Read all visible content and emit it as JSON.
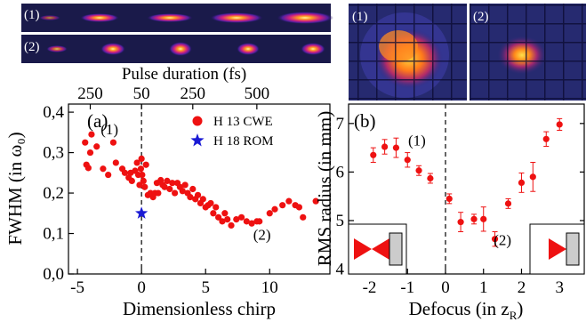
{
  "strips": {
    "labels": [
      "(1)",
      "(2)"
    ]
  },
  "images": {
    "labels": [
      "(1)",
      "(2)"
    ]
  },
  "chart_data": [
    {
      "type": "scatter",
      "panel_label": "(a)",
      "xlabel": "Dimensionless chirp",
      "ylabel": "FWHM  (in ω₀)",
      "top_axis_label": "Pulse duration (fs)",
      "xlim": [
        -5.7,
        14.7
      ],
      "ylim": [
        0,
        0.42
      ],
      "x_ticks": [
        -5,
        0,
        5,
        10
      ],
      "y_ticks": [
        0.0,
        0.1,
        0.2,
        0.3,
        0.4
      ],
      "y_tick_labels": [
        "0,0",
        "0,1",
        "0,2",
        "0,3",
        "0,4"
      ],
      "top_ticks": [
        {
          "x": -4.0,
          "label": "250"
        },
        {
          "x": 0.0,
          "label": "50"
        },
        {
          "x": 4.0,
          "label": "250"
        },
        {
          "x": 9.0,
          "label": "500"
        }
      ],
      "legend": [
        {
          "name": "H 13 CWE",
          "marker": "circle",
          "color": "#ee1111"
        },
        {
          "name": "H 18 ROM",
          "marker": "star",
          "color": "#1a1ad4"
        }
      ],
      "annotations": [
        {
          "text": "(1)",
          "x": -2.5,
          "y": 0.345
        },
        {
          "text": "(2)",
          "x": 9.4,
          "y": 0.085
        }
      ],
      "vline_x": 0,
      "series": [
        {
          "name": "H 13 CWE",
          "color": "#ee1111",
          "points": [
            [
              -4.4,
              0.325
            ],
            [
              -4.3,
              0.27
            ],
            [
              -4.15,
              0.262
            ],
            [
              -4.0,
              0.3
            ],
            [
              -3.9,
              0.345
            ],
            [
              -3.5,
              0.315
            ],
            [
              -3.0,
              0.26
            ],
            [
              -2.6,
              0.245
            ],
            [
              -2.2,
              0.325
            ],
            [
              -2.0,
              0.275
            ],
            [
              -1.5,
              0.26
            ],
            [
              -1.3,
              0.25
            ],
            [
              -1.0,
              0.238
            ],
            [
              -0.85,
              0.25
            ],
            [
              -0.75,
              0.23
            ],
            [
              -0.5,
              0.255
            ],
            [
              -0.35,
              0.275
            ],
            [
              -0.25,
              0.245
            ],
            [
              -0.15,
              0.22
            ],
            [
              -0.05,
              0.26
            ],
            [
              0.0,
              0.285
            ],
            [
              0.05,
              0.245
            ],
            [
              0.15,
              0.23
            ],
            [
              0.25,
              0.215
            ],
            [
              0.35,
              0.27
            ],
            [
              0.5,
              0.195
            ],
            [
              0.7,
              0.2
            ],
            [
              0.9,
              0.19
            ],
            [
              1.05,
              0.2
            ],
            [
              1.2,
              0.225
            ],
            [
              1.3,
              0.2
            ],
            [
              1.5,
              0.232
            ],
            [
              1.65,
              0.22
            ],
            [
              1.8,
              0.215
            ],
            [
              2.0,
              0.23
            ],
            [
              2.2,
              0.21
            ],
            [
              2.4,
              0.225
            ],
            [
              2.6,
              0.2
            ],
            [
              2.8,
              0.225
            ],
            [
              3.0,
              0.215
            ],
            [
              3.2,
              0.205
            ],
            [
              3.4,
              0.22
            ],
            [
              3.6,
              0.2
            ],
            [
              3.8,
              0.19
            ],
            [
              4.0,
              0.21
            ],
            [
              4.2,
              0.185
            ],
            [
              4.4,
              0.195
            ],
            [
              4.6,
              0.175
            ],
            [
              4.8,
              0.185
            ],
            [
              5.0,
              0.165
            ],
            [
              5.2,
              0.17
            ],
            [
              5.4,
              0.175
            ],
            [
              5.6,
              0.15
            ],
            [
              5.8,
              0.165
            ],
            [
              6.0,
              0.14
            ],
            [
              6.3,
              0.13
            ],
            [
              6.5,
              0.15
            ],
            [
              6.7,
              0.135
            ],
            [
              7.0,
              0.12
            ],
            [
              7.4,
              0.135
            ],
            [
              7.8,
              0.14
            ],
            [
              8.2,
              0.13
            ],
            [
              8.6,
              0.125
            ],
            [
              9.0,
              0.13
            ],
            [
              9.2,
              0.13
            ],
            [
              10.0,
              0.15
            ],
            [
              10.4,
              0.16
            ],
            [
              11.0,
              0.17
            ],
            [
              11.5,
              0.18
            ],
            [
              12.0,
              0.17
            ],
            [
              12.3,
              0.165
            ],
            [
              12.6,
              0.14
            ],
            [
              13.6,
              0.18
            ]
          ]
        },
        {
          "name": "H 18 ROM",
          "color": "#1a1ad4",
          "points": [
            [
              0.0,
              0.15
            ]
          ]
        }
      ]
    },
    {
      "type": "scatter",
      "panel_label": "(b)",
      "xlabel": "Defocus (in z",
      "xlabel_sub": "R",
      "xlabel_end": ")",
      "ylabel": "RMS radius (in mm)",
      "xlim": [
        -2.55,
        3.65
      ],
      "ylim": [
        3.9,
        7.4
      ],
      "x_ticks": [
        -2,
        -1,
        0,
        1,
        2,
        3
      ],
      "y_ticks": [
        4,
        5,
        6,
        7
      ],
      "annotations": [
        {
          "text": "(1)",
          "x": -0.75,
          "y": 6.55
        },
        {
          "text": "(2)",
          "x": 1.5,
          "y": 4.5
        }
      ],
      "vline_x": 0,
      "series": [
        {
          "name": "",
          "color": "#ee1111",
          "points": [
            {
              "x": -1.9,
              "y": 6.35,
              "err": 0.15
            },
            {
              "x": -1.6,
              "y": 6.52,
              "err": 0.15
            },
            {
              "x": -1.3,
              "y": 6.5,
              "err": 0.2
            },
            {
              "x": -1.0,
              "y": 6.25,
              "err": 0.15
            },
            {
              "x": -0.7,
              "y": 6.03,
              "err": 0.1
            },
            {
              "x": -0.4,
              "y": 5.87,
              "err": 0.1
            },
            {
              "x": 0.1,
              "y": 5.45,
              "err": 0.1
            },
            {
              "x": 0.4,
              "y": 4.97,
              "err": 0.2
            },
            {
              "x": 0.75,
              "y": 5.03,
              "err": 0.1
            },
            {
              "x": 1.0,
              "y": 5.03,
              "err": 0.25
            },
            {
              "x": 1.3,
              "y": 4.62,
              "err": 0.15
            },
            {
              "x": 1.65,
              "y": 5.35,
              "err": 0.1
            },
            {
              "x": 2.0,
              "y": 5.78,
              "err": 0.2
            },
            {
              "x": 2.3,
              "y": 5.9,
              "err": 0.3
            },
            {
              "x": 2.65,
              "y": 6.68,
              "err": 0.15
            },
            {
              "x": 3.0,
              "y": 6.98,
              "err": 0.12
            }
          ]
        }
      ]
    }
  ]
}
